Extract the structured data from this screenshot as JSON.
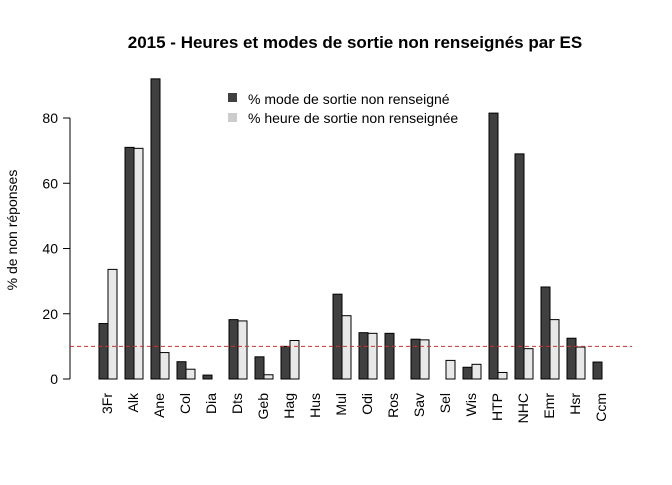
{
  "chart_data": {
    "type": "bar",
    "title": "2015 - Heures et modes de sortie non renseignés par ES",
    "xlabel": "",
    "ylabel": "% de non réponses",
    "ylim": [
      0,
      92
    ],
    "yticks": [
      0,
      20,
      40,
      60,
      80
    ],
    "grid": false,
    "legend_position": "top-center",
    "reference_line": {
      "value": 10,
      "style": "dashed",
      "color": "#cc3333"
    },
    "categories": [
      "3Fr",
      "Alk",
      "Ane",
      "Col",
      "Dia",
      "Dts",
      "Geb",
      "Hag",
      "Hus",
      "Mul",
      "Odi",
      "Ros",
      "Sav",
      "Sel",
      "Wis",
      "HTP",
      "NHC",
      "Emr",
      "Hsr",
      "Ccm"
    ],
    "series": [
      {
        "name": "% mode de sortie non renseigné",
        "color": "#404040",
        "values": [
          17,
          71,
          92,
          5.3,
          1.2,
          18.2,
          6.8,
          10,
          0,
          26,
          14.2,
          14,
          12.2,
          0,
          3.6,
          81.5,
          69,
          28.2,
          12.5,
          5.2
        ]
      },
      {
        "name": "% heure de sortie non renseignée",
        "color": "#e8e8e8",
        "values": [
          33.6,
          70.7,
          8.1,
          3,
          0,
          17.8,
          1.3,
          11.8,
          0,
          19.4,
          14,
          0,
          12,
          5.7,
          4.5,
          2,
          9.3,
          18.2,
          9.8,
          0
        ]
      }
    ]
  },
  "colors": {
    "axis": "#000000",
    "bar_stroke": "#000000",
    "legend_swatch_mode": "#404040",
    "legend_swatch_heure": "#cccccc"
  }
}
